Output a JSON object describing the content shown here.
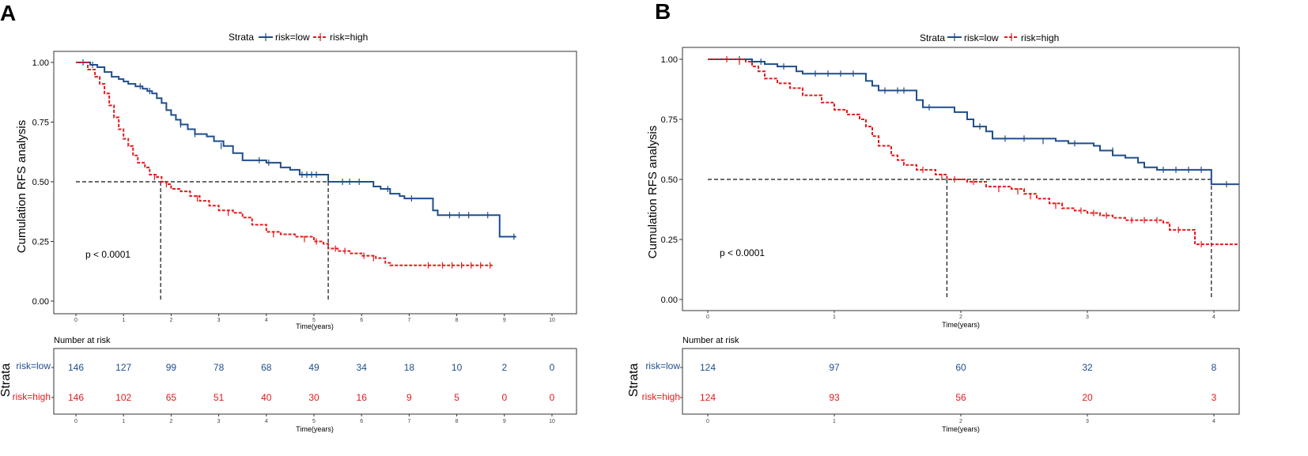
{
  "panels": [
    {
      "letter": "A",
      "legend_title": "Strata",
      "legend_low": "risk=low",
      "legend_high": "risk=high",
      "ylabel": "Cumulation RFS analysis",
      "xlabel": "Time(years)",
      "pvalue": "p < 0.0001",
      "risk_title": "Number at risk",
      "risk_ylabel": "Strata",
      "risk_low_label": "risk=low",
      "risk_high_label": "risk=high",
      "risk_xlabel": "Time(years)"
    },
    {
      "letter": "B",
      "legend_title": "Strata",
      "legend_low": "risk=low",
      "legend_high": "risk=high",
      "ylabel": "Cumulation RFS analysis",
      "xlabel": "Time(years)",
      "pvalue": "p < 0.0001",
      "risk_title": "Number at risk",
      "risk_ylabel": "Strata",
      "risk_low_label": "risk=low",
      "risk_high_label": "risk=high",
      "risk_xlabel": "Time(years)"
    }
  ],
  "colors": {
    "low": "#1f4e8c",
    "high": "#e41a1c",
    "axis": "#333333",
    "text": "#000000"
  },
  "chart_data": [
    {
      "type": "line",
      "title": "A",
      "xlabel": "Time(years)",
      "ylabel": "Cumulation RFS analysis",
      "xlim": [
        0,
        10
      ],
      "ylim": [
        0,
        1
      ],
      "xticks": [
        0,
        1,
        2,
        3,
        4,
        5,
        6,
        7,
        8,
        9,
        10
      ],
      "yticks": [
        0,
        0.25,
        0.5,
        0.75,
        1
      ],
      "ytick_labels": [
        "0.00",
        "0.25",
        "0.50",
        "0.75",
        "1.00"
      ],
      "median_line_y": 0.5,
      "medians": [
        1.78,
        5.3
      ],
      "series": [
        {
          "name": "risk=low",
          "points": [
            [
              0,
              1
            ],
            [
              0.1,
              1
            ],
            [
              0.3,
              0.99
            ],
            [
              0.45,
              0.98
            ],
            [
              0.6,
              0.96
            ],
            [
              0.75,
              0.94
            ],
            [
              0.9,
              0.93
            ],
            [
              1.0,
              0.92
            ],
            [
              1.1,
              0.91
            ],
            [
              1.25,
              0.9
            ],
            [
              1.4,
              0.89
            ],
            [
              1.5,
              0.88
            ],
            [
              1.6,
              0.87
            ],
            [
              1.7,
              0.85
            ],
            [
              1.8,
              0.83
            ],
            [
              1.9,
              0.8
            ],
            [
              2.0,
              0.78
            ],
            [
              2.1,
              0.76
            ],
            [
              2.2,
              0.74
            ],
            [
              2.35,
              0.72
            ],
            [
              2.5,
              0.7
            ],
            [
              2.75,
              0.69
            ],
            [
              2.9,
              0.67
            ],
            [
              3.1,
              0.65
            ],
            [
              3.3,
              0.62
            ],
            [
              3.5,
              0.59
            ],
            [
              3.8,
              0.59
            ],
            [
              4.0,
              0.58
            ],
            [
              4.3,
              0.56
            ],
            [
              4.5,
              0.55
            ],
            [
              4.7,
              0.53
            ],
            [
              5.1,
              0.53
            ],
            [
              5.3,
              0.5
            ],
            [
              6.1,
              0.5
            ],
            [
              6.25,
              0.48
            ],
            [
              6.4,
              0.47
            ],
            [
              6.6,
              0.45
            ],
            [
              6.8,
              0.44
            ],
            [
              6.9,
              0.43
            ],
            [
              7.4,
              0.43
            ],
            [
              7.5,
              0.38
            ],
            [
              7.6,
              0.36
            ],
            [
              8.9,
              0.36
            ],
            [
              8.9,
              0.27
            ],
            [
              9.25,
              0.27
            ]
          ],
          "censors": [
            [
              0.15,
              1
            ],
            [
              0.35,
              0.99
            ],
            [
              1.35,
              0.9
            ],
            [
              1.55,
              0.88
            ],
            [
              2.2,
              0.74
            ],
            [
              2.5,
              0.7
            ],
            [
              3.05,
              0.65
            ],
            [
              3.85,
              0.59
            ],
            [
              4.05,
              0.58
            ],
            [
              4.75,
              0.53
            ],
            [
              4.85,
              0.53
            ],
            [
              4.95,
              0.53
            ],
            [
              5.05,
              0.53
            ],
            [
              5.6,
              0.5
            ],
            [
              5.75,
              0.5
            ],
            [
              5.95,
              0.5
            ],
            [
              6.55,
              0.47
            ],
            [
              7.05,
              0.43
            ],
            [
              7.85,
              0.36
            ],
            [
              8.05,
              0.36
            ],
            [
              8.25,
              0.36
            ],
            [
              8.65,
              0.36
            ],
            [
              9.2,
              0.27
            ]
          ]
        },
        {
          "name": "risk=high",
          "points": [
            [
              0,
              1
            ],
            [
              0.05,
              1
            ],
            [
              0.25,
              0.97
            ],
            [
              0.4,
              0.94
            ],
            [
              0.5,
              0.91
            ],
            [
              0.6,
              0.87
            ],
            [
              0.7,
              0.82
            ],
            [
              0.8,
              0.77
            ],
            [
              0.9,
              0.72
            ],
            [
              1.0,
              0.68
            ],
            [
              1.1,
              0.65
            ],
            [
              1.2,
              0.61
            ],
            [
              1.3,
              0.58
            ],
            [
              1.45,
              0.56
            ],
            [
              1.55,
              0.53
            ],
            [
              1.7,
              0.52
            ],
            [
              1.8,
              0.5
            ],
            [
              1.9,
              0.49
            ],
            [
              2.0,
              0.47
            ],
            [
              2.2,
              0.46
            ],
            [
              2.4,
              0.44
            ],
            [
              2.6,
              0.42
            ],
            [
              2.8,
              0.4
            ],
            [
              3.0,
              0.38
            ],
            [
              3.3,
              0.37
            ],
            [
              3.5,
              0.35
            ],
            [
              3.7,
              0.32
            ],
            [
              4.0,
              0.29
            ],
            [
              4.3,
              0.28
            ],
            [
              4.6,
              0.27
            ],
            [
              5.0,
              0.25
            ],
            [
              5.2,
              0.24
            ],
            [
              5.3,
              0.22
            ],
            [
              5.5,
              0.21
            ],
            [
              5.75,
              0.2
            ],
            [
              6.0,
              0.19
            ],
            [
              6.3,
              0.18
            ],
            [
              6.5,
              0.16
            ],
            [
              6.6,
              0.15
            ],
            [
              8.75,
              0.15
            ]
          ],
          "censors": [
            [
              1.65,
              0.52
            ],
            [
              1.9,
              0.49
            ],
            [
              2.55,
              0.43
            ],
            [
              3.2,
              0.37
            ],
            [
              4.15,
              0.28
            ],
            [
              4.8,
              0.26
            ],
            [
              5.05,
              0.25
            ],
            [
              5.45,
              0.22
            ],
            [
              5.65,
              0.21
            ],
            [
              6.05,
              0.19
            ],
            [
              6.25,
              0.18
            ],
            [
              7.4,
              0.15
            ],
            [
              7.7,
              0.15
            ],
            [
              7.9,
              0.15
            ],
            [
              8.1,
              0.15
            ],
            [
              8.3,
              0.15
            ],
            [
              8.5,
              0.15
            ],
            [
              8.7,
              0.15
            ]
          ]
        }
      ],
      "risk_table": {
        "times": [
          0,
          1,
          2,
          3,
          4,
          5,
          6,
          7,
          8,
          9,
          10
        ],
        "low": [
          "146",
          "127",
          "99",
          "78",
          "68",
          "49",
          "34",
          "18",
          "10",
          "2",
          "0"
        ],
        "high": [
          "146",
          "102",
          "65",
          "51",
          "40",
          "30",
          "16",
          "9",
          "5",
          "0",
          "0"
        ]
      }
    },
    {
      "type": "line",
      "title": "B",
      "xlabel": "Time(years)",
      "ylabel": "Cumulation RFS analysis",
      "xlim": [
        0,
        4.2
      ],
      "ylim": [
        0,
        1
      ],
      "xticks": [
        0,
        1,
        2,
        3,
        4
      ],
      "yticks": [
        0,
        0.25,
        0.5,
        0.75,
        1
      ],
      "ytick_labels": [
        "0.00",
        "0.25",
        "0.50",
        "0.75",
        "1.00"
      ],
      "median_line_y": 0.5,
      "medians": [
        1.89,
        3.98
      ],
      "series": [
        {
          "name": "risk=low",
          "points": [
            [
              0,
              1
            ],
            [
              0.2,
              1
            ],
            [
              0.35,
              0.99
            ],
            [
              0.45,
              0.98
            ],
            [
              0.55,
              0.97
            ],
            [
              0.7,
              0.95
            ],
            [
              0.75,
              0.94
            ],
            [
              1.2,
              0.94
            ],
            [
              1.25,
              0.91
            ],
            [
              1.3,
              0.89
            ],
            [
              1.35,
              0.87
            ],
            [
              1.6,
              0.87
            ],
            [
              1.65,
              0.83
            ],
            [
              1.7,
              0.8
            ],
            [
              1.9,
              0.8
            ],
            [
              1.95,
              0.78
            ],
            [
              2.05,
              0.75
            ],
            [
              2.1,
              0.72
            ],
            [
              2.2,
              0.7
            ],
            [
              2.25,
              0.67
            ],
            [
              2.75,
              0.66
            ],
            [
              2.85,
              0.65
            ],
            [
              3.05,
              0.64
            ],
            [
              3.1,
              0.63
            ],
            [
              3.1,
              0.62
            ],
            [
              3.2,
              0.6
            ],
            [
              3.3,
              0.59
            ],
            [
              3.4,
              0.57
            ],
            [
              3.45,
              0.55
            ],
            [
              3.55,
              0.54
            ],
            [
              3.98,
              0.54
            ],
            [
              3.98,
              0.48
            ],
            [
              4.2,
              0.48
            ]
          ],
          "censors": [
            [
              0.25,
              1
            ],
            [
              0.42,
              0.99
            ],
            [
              0.6,
              0.97
            ],
            [
              0.85,
              0.94
            ],
            [
              0.95,
              0.94
            ],
            [
              1.05,
              0.94
            ],
            [
              1.15,
              0.94
            ],
            [
              1.4,
              0.87
            ],
            [
              1.5,
              0.87
            ],
            [
              1.55,
              0.87
            ],
            [
              1.75,
              0.8
            ],
            [
              2.15,
              0.72
            ],
            [
              2.35,
              0.67
            ],
            [
              2.5,
              0.67
            ],
            [
              2.65,
              0.66
            ],
            [
              2.9,
              0.65
            ],
            [
              3.2,
              0.62
            ],
            [
              3.6,
              0.54
            ],
            [
              3.7,
              0.54
            ],
            [
              3.8,
              0.54
            ],
            [
              3.9,
              0.54
            ],
            [
              4.1,
              0.48
            ]
          ]
        },
        {
          "name": "risk=high",
          "points": [
            [
              0,
              1
            ],
            [
              0.3,
              0.99
            ],
            [
              0.35,
              0.97
            ],
            [
              0.4,
              0.95
            ],
            [
              0.45,
              0.92
            ],
            [
              0.55,
              0.9
            ],
            [
              0.65,
              0.88
            ],
            [
              0.75,
              0.85
            ],
            [
              0.9,
              0.82
            ],
            [
              1.0,
              0.79
            ],
            [
              1.1,
              0.77
            ],
            [
              1.2,
              0.75
            ],
            [
              1.25,
              0.72
            ],
            [
              1.3,
              0.68
            ],
            [
              1.35,
              0.64
            ],
            [
              1.45,
              0.6
            ],
            [
              1.5,
              0.58
            ],
            [
              1.55,
              0.56
            ],
            [
              1.65,
              0.54
            ],
            [
              1.8,
              0.52
            ],
            [
              1.89,
              0.5
            ],
            [
              2.05,
              0.49
            ],
            [
              2.2,
              0.47
            ],
            [
              2.4,
              0.46
            ],
            [
              2.5,
              0.44
            ],
            [
              2.6,
              0.42
            ],
            [
              2.7,
              0.4
            ],
            [
              2.8,
              0.38
            ],
            [
              2.9,
              0.37
            ],
            [
              3.0,
              0.36
            ],
            [
              3.1,
              0.35
            ],
            [
              3.2,
              0.34
            ],
            [
              3.3,
              0.33
            ],
            [
              3.6,
              0.32
            ],
            [
              3.65,
              0.29
            ],
            [
              3.8,
              0.29
            ],
            [
              3.85,
              0.23
            ],
            [
              4.2,
              0.23
            ]
          ],
          "censors": [
            [
              0.15,
              1
            ],
            [
              0.25,
              0.99
            ],
            [
              1.7,
              0.54
            ],
            [
              1.85,
              0.51
            ],
            [
              1.95,
              0.5
            ],
            [
              2.1,
              0.49
            ],
            [
              2.3,
              0.46
            ],
            [
              2.45,
              0.45
            ],
            [
              2.55,
              0.43
            ],
            [
              2.75,
              0.39
            ],
            [
              2.95,
              0.37
            ],
            [
              3.05,
              0.36
            ],
            [
              3.15,
              0.35
            ],
            [
              3.35,
              0.33
            ],
            [
              3.45,
              0.33
            ],
            [
              3.55,
              0.33
            ],
            [
              3.72,
              0.29
            ],
            [
              3.9,
              0.23
            ]
          ]
        }
      ],
      "risk_table": {
        "times": [
          0,
          1,
          2,
          3,
          4
        ],
        "low": [
          "124",
          "97",
          "60",
          "32",
          "8"
        ],
        "high": [
          "124",
          "93",
          "56",
          "20",
          "3"
        ]
      }
    }
  ]
}
